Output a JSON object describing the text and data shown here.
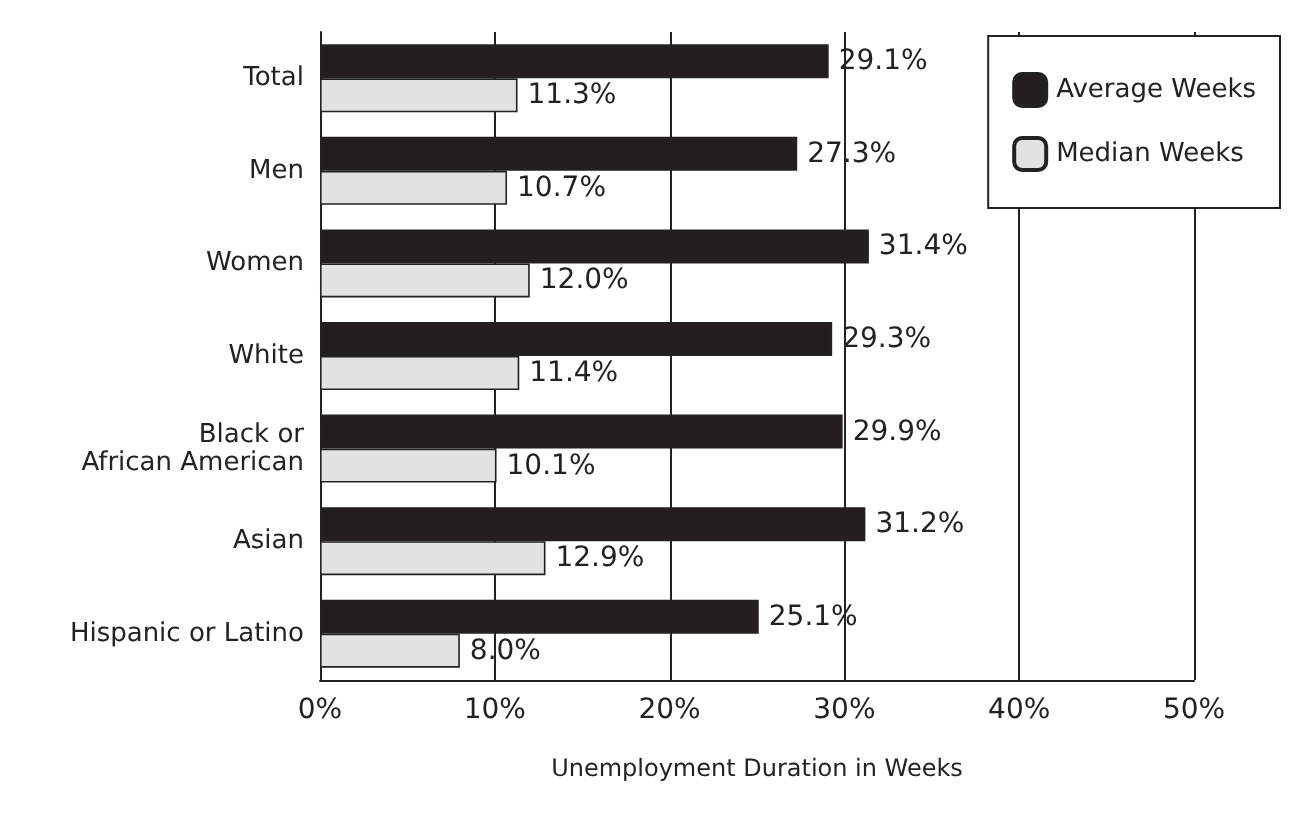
{
  "chart_data": {
    "type": "bar",
    "orientation": "horizontal",
    "xlabel": "Unemployment Duration in Weeks",
    "categories": [
      "Total",
      "Men",
      "Women",
      "White",
      "Black or\nAfrican American",
      "Asian",
      "Hispanic or Latino"
    ],
    "series": [
      {
        "name": "Average Weeks",
        "color": "#231f20",
        "values": [
          29.1,
          27.3,
          31.4,
          29.3,
          29.9,
          31.2,
          25.1
        ],
        "value_labels": [
          "29.1%",
          "27.3%",
          "31.4%",
          "29.3%",
          "29.9%",
          "31.2%",
          "25.1%"
        ]
      },
      {
        "name": "Median Weeks",
        "color": "#e2e2e2",
        "values": [
          11.3,
          10.7,
          12.0,
          11.4,
          10.1,
          12.9,
          8.0
        ],
        "value_labels": [
          "11.3%",
          "10.7%",
          "12.0%",
          "11.4%",
          "10.1%",
          "12.9%",
          "8.0%"
        ]
      }
    ],
    "xlim": [
      0,
      50
    ],
    "xticks": [
      {
        "value": 0,
        "label": "0%"
      },
      {
        "value": 10,
        "label": "10%"
      },
      {
        "value": 20,
        "label": "20%"
      },
      {
        "value": 30,
        "label": "30%"
      },
      {
        "value": 40,
        "label": "40%"
      },
      {
        "value": 50,
        "label": "50%"
      }
    ],
    "grid": "x",
    "legend": "top right"
  }
}
